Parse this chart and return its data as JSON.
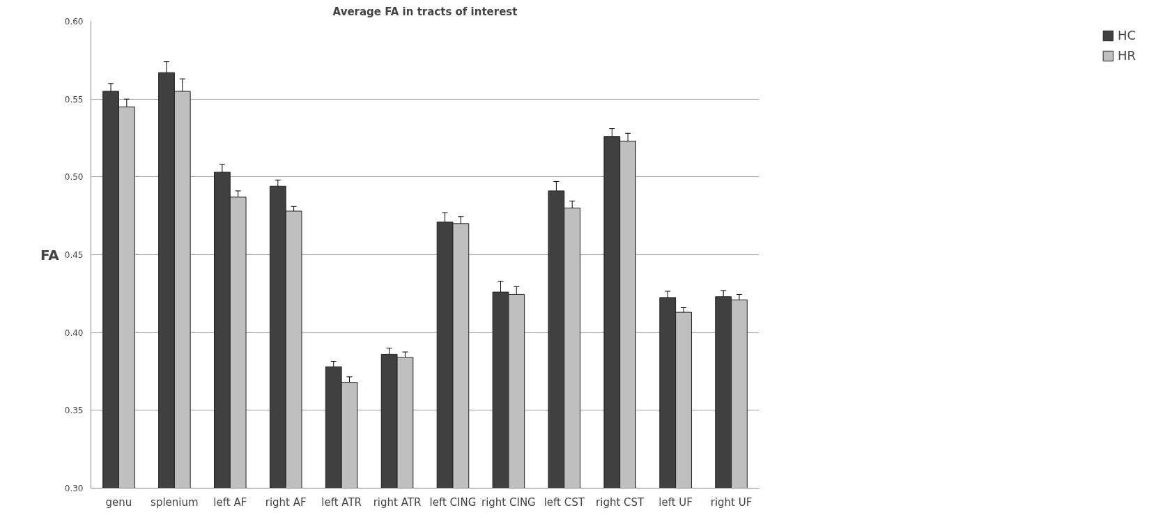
{
  "chart_data": {
    "type": "bar",
    "title": "Average FA in tracts of interest",
    "ylabel": "FA",
    "categories": [
      "genu",
      "splenium",
      "left AF",
      "right AF",
      "left ATR",
      "right ATR",
      "left CING",
      "right CING",
      "left CST",
      "right CST",
      "left UF",
      "right UF"
    ],
    "series": [
      {
        "name": "HC",
        "color": "#404040",
        "values": [
          0.555,
          0.567,
          0.503,
          0.494,
          0.378,
          0.386,
          0.471,
          0.426,
          0.491,
          0.526,
          0.4225,
          0.423
        ],
        "errors": [
          0.005,
          0.007,
          0.005,
          0.004,
          0.0035,
          0.004,
          0.006,
          0.007,
          0.006,
          0.005,
          0.004,
          0.004
        ]
      },
      {
        "name": "HR",
        "color": "#bfbfbf",
        "values": [
          0.545,
          0.555,
          0.487,
          0.478,
          0.368,
          0.384,
          0.47,
          0.4245,
          0.48,
          0.523,
          0.413,
          0.421
        ],
        "errors": [
          0.005,
          0.008,
          0.004,
          0.003,
          0.0035,
          0.0035,
          0.0045,
          0.005,
          0.0045,
          0.005,
          0.003,
          0.0035
        ]
      }
    ],
    "ylim": [
      0.3,
      0.6
    ],
    "yticks": [
      {
        "value": 0.3,
        "label": "0.30"
      },
      {
        "value": 0.35,
        "label": "0.35"
      },
      {
        "value": 0.4,
        "label": "0.40"
      },
      {
        "value": 0.45,
        "label": "0.45"
      },
      {
        "value": 0.5,
        "label": "0.50"
      },
      {
        "value": 0.55,
        "label": "0.55"
      },
      {
        "value": 0.6,
        "label": "0.60"
      }
    ],
    "grid": "y",
    "legend": "right"
  }
}
